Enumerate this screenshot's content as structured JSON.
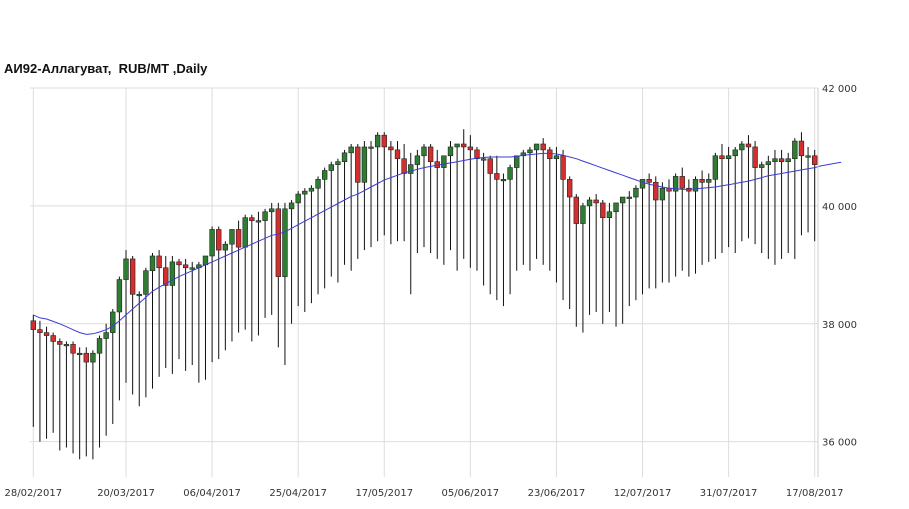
{
  "chart_data": {
    "type": "candlestick",
    "title": "АИ92-Аллагуват,  RUB/MT ,Daily",
    "ylim": [
      35400,
      42000
    ],
    "y_ticks": [
      36000,
      38000,
      40000,
      42000
    ],
    "y_tick_labels": [
      "36 000",
      "38 000",
      "40 000",
      "42 000"
    ],
    "x_tick_labels": [
      "28/02/2017",
      "20/03/2017",
      "06/04/2017",
      "25/04/2017",
      "17/05/2017",
      "05/06/2017",
      "23/06/2017",
      "12/07/2017",
      "31/07/2017",
      "17/08/2017"
    ],
    "x_tick_candle_index": [
      0,
      14,
      27,
      40,
      53,
      66,
      79,
      92,
      105,
      118
    ],
    "grid": true,
    "legend": "none",
    "colors": {
      "up": "#2e7d32",
      "down": "#d32f2f",
      "ma": "#3b3bd6",
      "grid": "#dddddd",
      "wick": "#111111"
    },
    "candles": [
      [
        38050,
        38150,
        36250,
        37900
      ],
      [
        37900,
        38050,
        36000,
        37850
      ],
      [
        37850,
        37950,
        36050,
        37800
      ],
      [
        37800,
        37850,
        36150,
        37700
      ],
      [
        37700,
        37750,
        35850,
        37650
      ],
      [
        37650,
        37700,
        35900,
        37650
      ],
      [
        37650,
        37700,
        35800,
        37500
      ],
      [
        37500,
        37600,
        35700,
        37500
      ],
      [
        37500,
        37600,
        35750,
        37350
      ],
      [
        37350,
        37550,
        35700,
        37500
      ],
      [
        37500,
        37800,
        35900,
        37750
      ],
      [
        37750,
        38000,
        36100,
        37850
      ],
      [
        37850,
        38250,
        36300,
        38200
      ],
      [
        38200,
        38800,
        36700,
        38750
      ],
      [
        38750,
        39250,
        37000,
        39100
      ],
      [
        39100,
        39150,
        36800,
        38500
      ],
      [
        38500,
        38550,
        36600,
        38500
      ],
      [
        38500,
        38950,
        36750,
        38900
      ],
      [
        38900,
        39200,
        36900,
        39150
      ],
      [
        39150,
        39250,
        37100,
        38950
      ],
      [
        38950,
        39150,
        37250,
        38650
      ],
      [
        38650,
        39150,
        37150,
        39050
      ],
      [
        39050,
        39100,
        37400,
        39000
      ],
      [
        39000,
        39100,
        37200,
        38950
      ],
      [
        38950,
        39050,
        37300,
        38950
      ],
      [
        38950,
        39050,
        37000,
        39000
      ],
      [
        39000,
        39150,
        37050,
        39150
      ],
      [
        39150,
        39650,
        37350,
        39600
      ],
      [
        39600,
        39650,
        37400,
        39250
      ],
      [
        39250,
        39400,
        37550,
        39350
      ],
      [
        39350,
        39600,
        37700,
        39600
      ],
      [
        39600,
        39750,
        37850,
        39300
      ],
      [
        39300,
        39850,
        37900,
        39800
      ],
      [
        39800,
        39850,
        37700,
        39750
      ],
      [
        39750,
        39900,
        37800,
        39750
      ],
      [
        39750,
        39950,
        38100,
        39900
      ],
      [
        39900,
        40050,
        38150,
        39950
      ],
      [
        39950,
        40050,
        37600,
        38800
      ],
      [
        38800,
        40050,
        37300,
        39950
      ],
      [
        39950,
        40100,
        38000,
        40050
      ],
      [
        40050,
        40250,
        38300,
        40200
      ],
      [
        40200,
        40300,
        38200,
        40250
      ],
      [
        40250,
        40350,
        38350,
        40300
      ],
      [
        40300,
        40500,
        38500,
        40450
      ],
      [
        40450,
        40650,
        38600,
        40600
      ],
      [
        40600,
        40750,
        38800,
        40700
      ],
      [
        40700,
        40800,
        38700,
        40750
      ],
      [
        40750,
        40950,
        39000,
        40900
      ],
      [
        40900,
        41050,
        38900,
        41000
      ],
      [
        41000,
        41050,
        39100,
        40400
      ],
      [
        40400,
        41100,
        39250,
        41000
      ],
      [
        41000,
        41100,
        39300,
        41000
      ],
      [
        41000,
        41250,
        39400,
        41200
      ],
      [
        41200,
        41250,
        39500,
        41000
      ],
      [
        41000,
        41100,
        39350,
        40950
      ],
      [
        40950,
        41100,
        39400,
        40800
      ],
      [
        40800,
        41050,
        39400,
        40550
      ],
      [
        40550,
        40900,
        38500,
        40700
      ],
      [
        40700,
        40950,
        39200,
        40850
      ],
      [
        40850,
        41050,
        39300,
        41000
      ],
      [
        41000,
        41050,
        39200,
        40750
      ],
      [
        40750,
        40950,
        39100,
        40650
      ],
      [
        40650,
        40850,
        39000,
        40850
      ],
      [
        40850,
        41100,
        39250,
        41000
      ],
      [
        41000,
        41050,
        38900,
        41050
      ],
      [
        41050,
        41300,
        39100,
        41000
      ],
      [
        41000,
        41200,
        38950,
        40950
      ],
      [
        40950,
        41000,
        38900,
        40800
      ],
      [
        40800,
        40900,
        38650,
        40800
      ],
      [
        40800,
        40850,
        38500,
        40550
      ],
      [
        40550,
        40850,
        38400,
        40450
      ],
      [
        40450,
        40550,
        38300,
        40450
      ],
      [
        40450,
        40700,
        38500,
        40650
      ],
      [
        40650,
        40850,
        38900,
        40850
      ],
      [
        40850,
        40950,
        39000,
        40900
      ],
      [
        40900,
        41000,
        38900,
        40950
      ],
      [
        40950,
        41050,
        39100,
        41050
      ],
      [
        41050,
        41150,
        39000,
        40950
      ],
      [
        40950,
        41000,
        38900,
        40800
      ],
      [
        40800,
        41000,
        38700,
        40850
      ],
      [
        40850,
        40950,
        38400,
        40450
      ],
      [
        40450,
        40500,
        38250,
        40150
      ],
      [
        40150,
        40200,
        37950,
        39700
      ],
      [
        39700,
        40050,
        37850,
        40000
      ],
      [
        40000,
        40150,
        38150,
        40100
      ],
      [
        40100,
        40200,
        38200,
        40050
      ],
      [
        40050,
        40100,
        38000,
        39800
      ],
      [
        39800,
        40050,
        38200,
        39900
      ],
      [
        39900,
        40050,
        37950,
        40050
      ],
      [
        40050,
        40150,
        38000,
        40150
      ],
      [
        40150,
        40250,
        38300,
        40150
      ],
      [
        40150,
        40350,
        38400,
        40300
      ],
      [
        40300,
        40450,
        38500,
        40450
      ],
      [
        40450,
        40550,
        38600,
        40400
      ],
      [
        40400,
        40500,
        38600,
        40100
      ],
      [
        40100,
        40400,
        38700,
        40300
      ],
      [
        40300,
        40450,
        38700,
        40250
      ],
      [
        40250,
        40550,
        38800,
        40500
      ],
      [
        40500,
        40650,
        38900,
        40300
      ],
      [
        40300,
        40450,
        38800,
        40250
      ],
      [
        40250,
        40500,
        38850,
        40450
      ],
      [
        40450,
        40600,
        39000,
        40400
      ],
      [
        40400,
        40550,
        39050,
        40450
      ],
      [
        40450,
        40900,
        39100,
        40850
      ],
      [
        40850,
        41050,
        39200,
        40800
      ],
      [
        40800,
        41000,
        39300,
        40850
      ],
      [
        40850,
        41000,
        39200,
        40950
      ],
      [
        40950,
        41100,
        39400,
        41050
      ],
      [
        41050,
        41200,
        39450,
        41000
      ],
      [
        41000,
        41100,
        39350,
        40650
      ],
      [
        40650,
        40750,
        39200,
        40700
      ],
      [
        40700,
        40850,
        39100,
        40750
      ],
      [
        40750,
        40950,
        39000,
        40800
      ],
      [
        40800,
        40950,
        39100,
        40750
      ],
      [
        40750,
        40900,
        39200,
        40800
      ],
      [
        40800,
        41150,
        39100,
        41100
      ],
      [
        41100,
        41250,
        39500,
        40850
      ],
      [
        40850,
        41000,
        39550,
        40850
      ],
      [
        40850,
        40950,
        39400,
        40700
      ]
    ],
    "ma": [
      38150,
      38100,
      38080,
      38040,
      38000,
      37950,
      37900,
      37850,
      37820,
      37830,
      37860,
      37900,
      37960,
      38050,
      38150,
      38250,
      38350,
      38450,
      38550,
      38620,
      38680,
      38740,
      38800,
      38850,
      38900,
      38950,
      39000,
      39050,
      39100,
      39150,
      39200,
      39250,
      39300,
      39350,
      39400,
      39450,
      39500,
      39520,
      39560,
      39620,
      39680,
      39740,
      39800,
      39860,
      39920,
      39980,
      40040,
      40100,
      40160,
      40200,
      40260,
      40320,
      40380,
      40440,
      40480,
      40520,
      40560,
      40590,
      40620,
      40650,
      40670,
      40690,
      40710,
      40730,
      40750,
      40770,
      40790,
      40810,
      40820,
      40830,
      40830,
      40830,
      40830,
      40840,
      40860,
      40870,
      40880,
      40890,
      40890,
      40880,
      40860,
      40830,
      40800,
      40760,
      40720,
      40680,
      40640,
      40600,
      40560,
      40520,
      40480,
      40440,
      40400,
      40370,
      40340,
      40320,
      40300,
      40290,
      40280,
      40280,
      40290,
      40300,
      40310,
      40320,
      40340,
      40360,
      40380,
      40400,
      40420,
      40450,
      40480,
      40510,
      40530,
      40550,
      40570,
      40590,
      40610,
      40630,
      40650,
      40680,
      40700,
      40720,
      40740
    ]
  }
}
